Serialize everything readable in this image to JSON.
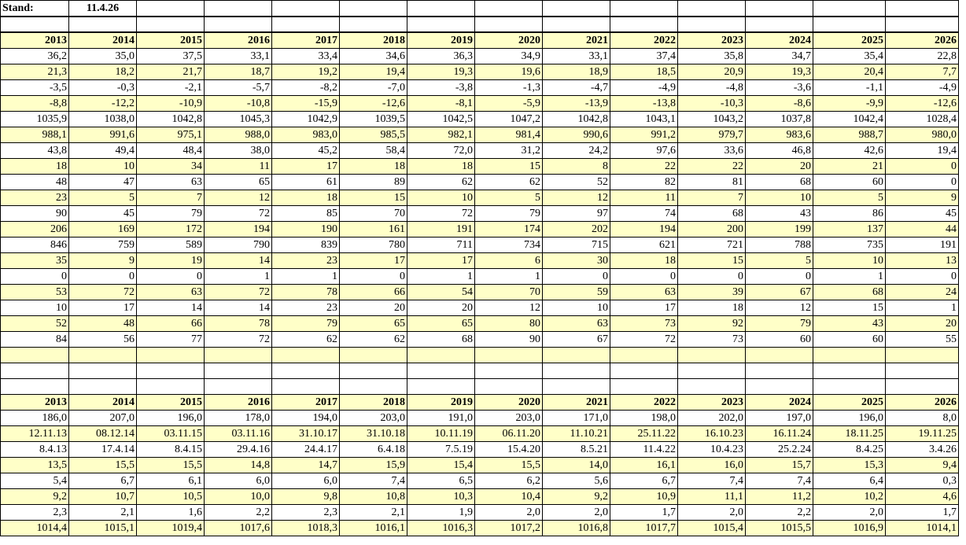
{
  "header": {
    "stand_label": "Stand:",
    "stand_date": "11.4.26"
  },
  "years": [
    "2013",
    "2014",
    "2015",
    "2016",
    "2017",
    "2018",
    "2019",
    "2020",
    "2021",
    "2022",
    "2023",
    "2024",
    "2025",
    "2026"
  ],
  "table1_rows": [
    [
      "36,2",
      "35,0",
      "37,5",
      "33,1",
      "33,4",
      "34,6",
      "36,3",
      "34,9",
      "33,1",
      "37,4",
      "35,8",
      "34,7",
      "35,4",
      "22,8"
    ],
    [
      "21,3",
      "18,2",
      "21,7",
      "18,7",
      "19,2",
      "19,4",
      "19,3",
      "19,6",
      "18,9",
      "18,5",
      "20,9",
      "19,3",
      "20,4",
      "7,7"
    ],
    [
      "-3,5",
      "-0,3",
      "-2,1",
      "-5,7",
      "-8,2",
      "-7,0",
      "-3,8",
      "-1,3",
      "-4,7",
      "-4,9",
      "-4,8",
      "-3,6",
      "-1,1",
      "-4,9"
    ],
    [
      "-8,8",
      "-12,2",
      "-10,9",
      "-10,8",
      "-15,9",
      "-12,6",
      "-8,1",
      "-5,9",
      "-13,9",
      "-13,8",
      "-10,3",
      "-8,6",
      "-9,9",
      "-12,6"
    ],
    [
      "1035,9",
      "1038,0",
      "1042,8",
      "1045,3",
      "1042,9",
      "1039,5",
      "1042,5",
      "1047,2",
      "1042,8",
      "1043,1",
      "1043,2",
      "1037,8",
      "1042,4",
      "1028,4"
    ],
    [
      "988,1",
      "991,6",
      "975,1",
      "988,0",
      "983,0",
      "985,5",
      "982,1",
      "981,4",
      "990,6",
      "991,2",
      "979,7",
      "983,6",
      "988,7",
      "980,0"
    ],
    [
      "43,8",
      "49,4",
      "48,4",
      "38,0",
      "45,2",
      "58,4",
      "72,0",
      "31,2",
      "24,2",
      "97,6",
      "33,6",
      "46,8",
      "42,6",
      "19,4"
    ],
    [
      "18",
      "10",
      "34",
      "11",
      "17",
      "18",
      "18",
      "15",
      "8",
      "22",
      "22",
      "20",
      "21",
      "0"
    ],
    [
      "48",
      "47",
      "63",
      "65",
      "61",
      "89",
      "62",
      "62",
      "52",
      "82",
      "81",
      "68",
      "60",
      "0"
    ],
    [
      "23",
      "5",
      "7",
      "12",
      "18",
      "15",
      "10",
      "5",
      "12",
      "11",
      "7",
      "10",
      "5",
      "9"
    ],
    [
      "90",
      "45",
      "79",
      "72",
      "85",
      "70",
      "72",
      "79",
      "97",
      "74",
      "68",
      "43",
      "86",
      "45"
    ],
    [
      "206",
      "169",
      "172",
      "194",
      "190",
      "161",
      "191",
      "174",
      "202",
      "194",
      "200",
      "199",
      "137",
      "44"
    ],
    [
      "846",
      "759",
      "589",
      "790",
      "839",
      "780",
      "711",
      "734",
      "715",
      "621",
      "721",
      "788",
      "735",
      "191"
    ],
    [
      "35",
      "9",
      "19",
      "14",
      "23",
      "17",
      "17",
      "6",
      "30",
      "18",
      "15",
      "5",
      "10",
      "13"
    ],
    [
      "0",
      "0",
      "0",
      "1",
      "1",
      "0",
      "1",
      "1",
      "0",
      "0",
      "0",
      "0",
      "1",
      "0"
    ],
    [
      "53",
      "72",
      "63",
      "72",
      "78",
      "66",
      "54",
      "70",
      "59",
      "63",
      "39",
      "67",
      "68",
      "24"
    ],
    [
      "10",
      "17",
      "14",
      "14",
      "23",
      "20",
      "20",
      "12",
      "10",
      "17",
      "18",
      "12",
      "15",
      "1"
    ],
    [
      "52",
      "48",
      "66",
      "78",
      "79",
      "65",
      "65",
      "80",
      "63",
      "73",
      "92",
      "79",
      "43",
      "20"
    ],
    [
      "84",
      "56",
      "77",
      "72",
      "62",
      "62",
      "68",
      "90",
      "67",
      "72",
      "73",
      "60",
      "60",
      "55"
    ]
  ],
  "table2_rows": [
    [
      "186,0",
      "207,0",
      "196,0",
      "178,0",
      "194,0",
      "203,0",
      "191,0",
      "203,0",
      "171,0",
      "198,0",
      "202,0",
      "197,0",
      "196,0",
      "8,0"
    ],
    [
      "12.11.13",
      "08.12.14",
      "03.11.15",
      "03.11.16",
      "31.10.17",
      "31.10.18",
      "10.11.19",
      "06.11.20",
      "11.10.21",
      "25.11.22",
      "16.10.23",
      "16.11.24",
      "18.11.25",
      "19.11.25"
    ],
    [
      "8.4.13",
      "17.4.14",
      "8.4.15",
      "29.4.16",
      "24.4.17",
      "6.4.18",
      "7.5.19",
      "15.4.20",
      "8.5.21",
      "11.4.22",
      "10.4.23",
      "25.2.24",
      "8.4.25",
      "3.4.26"
    ],
    [
      "13,5",
      "15,5",
      "15,5",
      "14,8",
      "14,7",
      "15,9",
      "15,4",
      "15,5",
      "14,0",
      "16,1",
      "16,0",
      "15,7",
      "15,3",
      "9,4"
    ],
    [
      "5,4",
      "6,7",
      "6,1",
      "6,0",
      "6,0",
      "7,4",
      "6,5",
      "6,2",
      "5,6",
      "6,7",
      "7,4",
      "7,4",
      "6,4",
      "0,3"
    ],
    [
      "9,2",
      "10,7",
      "10,5",
      "10,0",
      "9,8",
      "10,8",
      "10,3",
      "10,4",
      "9,2",
      "10,9",
      "11,1",
      "11,2",
      "10,2",
      "4,6"
    ],
    [
      "2,3",
      "2,1",
      "1,6",
      "2,2",
      "2,3",
      "2,1",
      "1,9",
      "2,0",
      "2,0",
      "1,7",
      "2,0",
      "2,2",
      "2,0",
      "1,7"
    ],
    [
      "1014,4",
      "1015,1",
      "1019,4",
      "1017,6",
      "1018,3",
      "1016,1",
      "1016,3",
      "1017,2",
      "1016,8",
      "1017,7",
      "1015,4",
      "1015,5",
      "1016,9",
      "1014,1"
    ]
  ]
}
